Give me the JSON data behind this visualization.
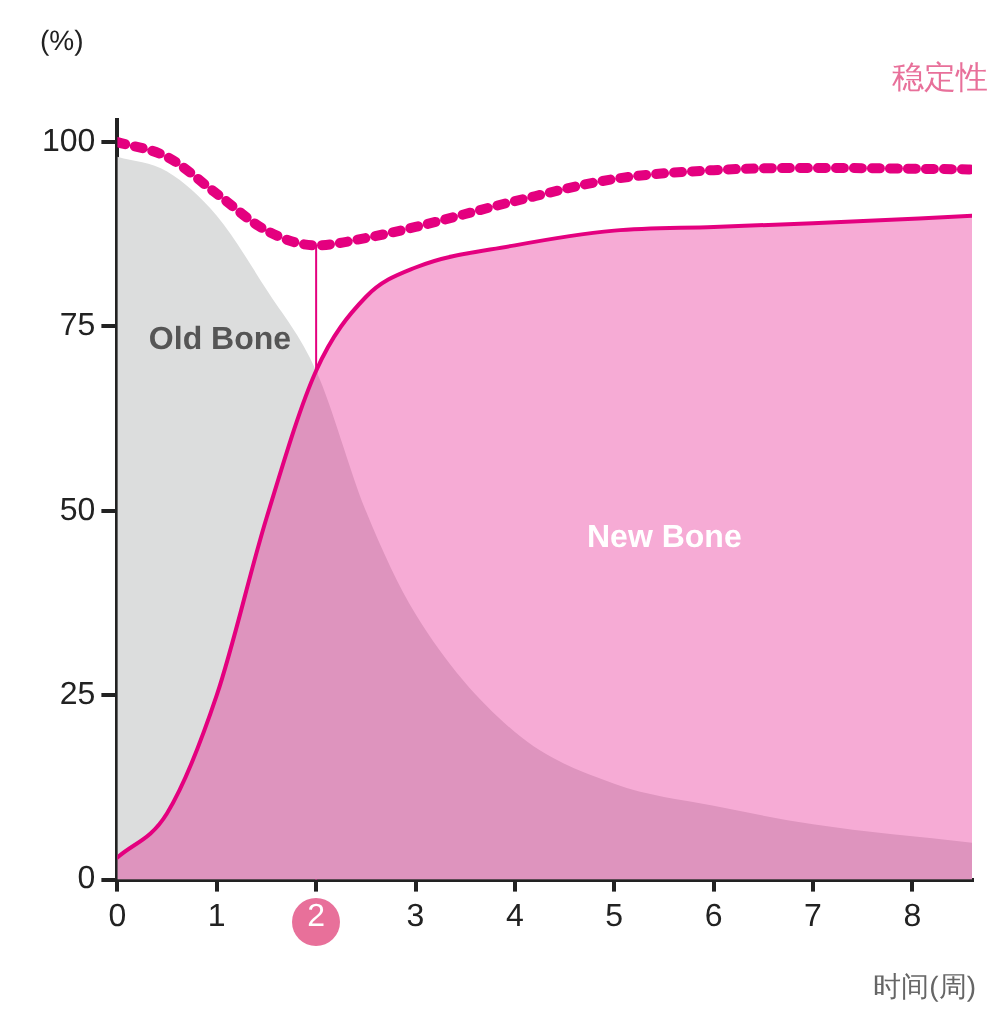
{
  "chart_data": {
    "type": "area",
    "xlabel": "时间(周)",
    "ylabel": "(%)",
    "xlim": [
      0,
      8.6
    ],
    "ylim": [
      0,
      103
    ],
    "xticks": [
      0,
      1,
      2,
      3,
      4,
      5,
      6,
      7,
      8
    ],
    "yticks": [
      0,
      25,
      50,
      75,
      100
    ],
    "grid": false,
    "legend": false,
    "marker": "none",
    "ref_lines": [
      {
        "axis": "x",
        "value": 2,
        "color": "#e4007f"
      }
    ],
    "series": [
      {
        "name": "New Bone",
        "color": "#e4007f",
        "x": [
          0,
          0.5,
          1,
          1.5,
          2,
          2.5,
          3,
          4,
          5,
          6,
          7,
          8.6
        ],
        "values": [
          3,
          9,
          25,
          49,
          69,
          79,
          83,
          86,
          88,
          88.5,
          89,
          90
        ]
      },
      {
        "name": "Old Bone",
        "color": "#dcdddd",
        "x": [
          0,
          0.5,
          1,
          1.5,
          2,
          2.5,
          3,
          4,
          5,
          6,
          7,
          8.6
        ],
        "values": [
          98,
          96,
          90,
          80,
          69,
          50,
          36,
          20,
          13,
          10,
          7.5,
          5
        ]
      },
      {
        "name": "稳定性",
        "type": "line",
        "line_style": "dashed",
        "color": "#e4007f",
        "x": [
          0,
          0.5,
          1,
          1.5,
          2,
          2.5,
          3,
          4,
          5,
          6,
          7,
          8.6
        ],
        "values": [
          100,
          98,
          93,
          88,
          86,
          87,
          88.5,
          92,
          95,
          96.2,
          96.5,
          96.3
        ]
      }
    ]
  }
}
